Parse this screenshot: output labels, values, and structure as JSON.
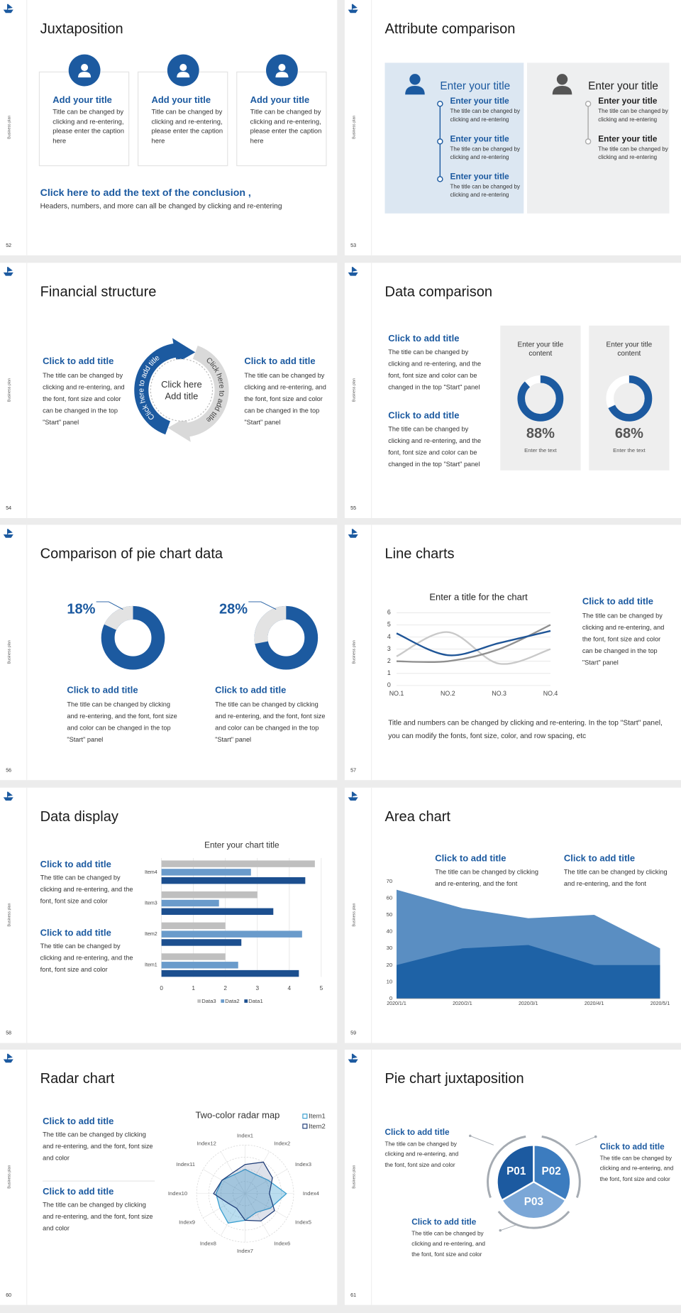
{
  "slides": [
    {
      "type": "cards",
      "number": 52,
      "side_label": "Business plan",
      "title": "Juxtaposition",
      "cards": [
        {
          "title": "Add your title",
          "text": "Title can be changed by clicking and re-entering, please enter the caption here"
        },
        {
          "title": "Add your title",
          "text": "Title can be changed by clicking and re-entering, please enter the caption here"
        },
        {
          "title": "Add your title",
          "text": "Title can be changed by clicking and re-entering, please enter the caption here"
        }
      ],
      "conclusion": "Click here to add the text of the conclusion ,",
      "conclusion_text": "Headers, numbers, and more can all be changed by clicking and re-entering"
    },
    {
      "type": "attributes",
      "number": 53,
      "side_label": "Business plan",
      "title": "Attribute comparison",
      "panels": [
        {
          "heading": "Enter your title",
          "items": [
            {
              "title": "Enter your title",
              "text": "The title can be changed by clicking and re-entering"
            },
            {
              "title": "Enter your title",
              "text": "The title can be changed by clicking and re-entering"
            },
            {
              "title": "Enter your title",
              "text": "The title can be changed by clicking and re-entering"
            }
          ]
        },
        {
          "heading": "Enter your title",
          "items": [
            {
              "title": "Enter your title",
              "text": "The title can be changed by clicking and re-entering"
            },
            {
              "title": "Enter your title",
              "text": "The title can be changed by clicking and re-entering"
            }
          ]
        }
      ]
    },
    {
      "type": "cycle",
      "number": 54,
      "side_label": "Business plan",
      "title": "Financial structure",
      "columns": [
        {
          "title": "Click to add title",
          "text": "The title can be changed by clicking and re-entering, and the font, font size and color can be changed in the top \"Start\" panel"
        },
        {
          "title": "Click to add title",
          "text": "The title can be changed by clicking and re-entering, and the font, font size and color can be changed in the top \"Start\" panel"
        }
      ],
      "center_lines": [
        "Click here",
        "Add title"
      ],
      "arc_labels": [
        "Click here to add title",
        "Click here to add title"
      ]
    },
    {
      "type": "gauges",
      "number": 55,
      "side_label": "Business plan",
      "title": "Data comparison",
      "items": [
        {
          "title": "Click to add title",
          "text": "The title can be changed by clicking and re-entering, and the font, font size and color can be changed in the top \"Start\" panel"
        },
        {
          "title": "Click to add title",
          "text": "The title can be changed by clicking and re-entering, and the font, font size and color can be changed in the top \"Start\" panel"
        }
      ],
      "cards": [
        {
          "title": "Enter your title content",
          "value": 88,
          "value_label": "88%",
          "caption": "Enter the text",
          "color": "#1c5aa0"
        },
        {
          "title": "Enter your title content",
          "value": 68,
          "value_label": "68%",
          "caption": "Enter the text",
          "color": "#1c5aa0"
        }
      ]
    },
    {
      "type": "donuts",
      "number": 56,
      "side_label": "Business plan",
      "title": "Comparison of pie chart data",
      "charts": [
        {
          "value": 18,
          "value_label": "18%",
          "color": "#e3e3e3",
          "title": "Click to add title",
          "text": "The title can be changed by clicking and re-entering, and the font, font size and color can be changed in the top \"Start\" panel"
        },
        {
          "value": 28,
          "value_label": "28%",
          "color": "#e3e3e3",
          "title": "Click to add title",
          "text": "The title can be changed by clicking and re-entering, and the font, font size and color can be changed in the top \"Start\" panel"
        }
      ]
    },
    {
      "type": "line",
      "number": 57,
      "side_label": "Business plan",
      "title": "Line charts",
      "chart": {
        "type": "line",
        "title": "Enter a title for the chart",
        "categories": [
          "NO.1",
          "NO.2",
          "NO.3",
          "NO.4"
        ],
        "series": [
          {
            "color": "#c9c9c9",
            "values": [
              2.4,
              4.4,
              1.8,
              3.0
            ]
          },
          {
            "color": "#8f8f8f",
            "values": [
              2.0,
              2.0,
              3.0,
              5.0
            ]
          },
          {
            "color": "#1f5597",
            "values": [
              4.3,
              2.5,
              3.5,
              4.5
            ]
          }
        ],
        "ylim": [
          0,
          6
        ],
        "yticks": [
          0,
          1,
          2,
          3,
          4,
          5,
          6
        ],
        "grid": true
      },
      "side": {
        "title": "Click to add title",
        "text": "The title can be changed by clicking and re-entering, and the font, font size and color can be changed in the top \"Start\" panel"
      },
      "note": "Title and numbers can be changed by clicking and re-entering. In the top \"Start\" panel, you can modify the fonts, font size, color, and row spacing, etc"
    },
    {
      "type": "bar",
      "number": 58,
      "side_label": "Business plan",
      "title": "Data display",
      "items": [
        {
          "title": "Click to add title",
          "text": "The title can be changed by clicking and re-entering, and the font, font size and color"
        },
        {
          "title": "Click to add title",
          "text": "The title can be changed by clicking and re-entering, and the font, font size and color"
        }
      ],
      "chart": {
        "type": "bar",
        "title": "Enter your chart title",
        "categories": [
          "Item1",
          "Item2",
          "Item3",
          "Item4"
        ],
        "series": [
          {
            "name": "Data3",
            "color": "#bfbfbf",
            "values": [
              2,
              2,
              3,
              4.8
            ]
          },
          {
            "name": "Data2",
            "color": "#6a9bcb",
            "values": [
              2.4,
              4.4,
              1.8,
              2.8
            ]
          },
          {
            "name": "Data1",
            "color": "#1c4f8f",
            "values": [
              4.3,
              2.5,
              3.5,
              4.5
            ]
          }
        ],
        "xlim": [
          0,
          5
        ],
        "xticks": [
          0,
          1,
          2,
          3,
          4,
          5
        ],
        "grid": true
      }
    },
    {
      "type": "area",
      "number": 59,
      "side_label": "Business plan",
      "title": "Area chart",
      "texts": [
        {
          "title": "Click to add title",
          "text": "The title can be changed by clicking and re-entering, and the font"
        },
        {
          "title": "Click to add title",
          "text": "The title can be changed by clicking and re-entering, and the font"
        }
      ],
      "chart": {
        "type": "area",
        "categories": [
          "2020/1/1",
          "2020/2/1",
          "2020/3/1",
          "2020/4/1",
          "2020/5/1"
        ],
        "series": [
          {
            "color": "#5a8ec2",
            "values": [
              65,
              54,
              48,
              50,
              30
            ]
          },
          {
            "color": "#1e62a6",
            "values": [
              20,
              30,
              32,
              20,
              20
            ]
          }
        ],
        "ylim": [
          0,
          70
        ],
        "yticks": [
          0,
          10,
          20,
          30,
          40,
          50,
          60,
          70
        ]
      }
    },
    {
      "type": "radar",
      "number": 60,
      "side_label": "Business plan",
      "title": "Radar chart",
      "items": [
        {
          "title": "Click to add title",
          "text": "The title can be changed by clicking and re-entering, and the font, font size and color"
        },
        {
          "title": "Click to add title",
          "text": "The title can be changed by clicking and re-entering, and the font, font size and color"
        }
      ],
      "chart": {
        "type": "radar",
        "title": "Two-color radar map",
        "indicators": [
          "Index1",
          "Index2",
          "Index3",
          "Index4",
          "Index5",
          "Index6",
          "Index7",
          "Index8",
          "Index9",
          "Index10",
          "Index11",
          "Index12"
        ],
        "series": [
          {
            "name": "Item1",
            "color": "#3a9fd0",
            "values": [
              50,
              45,
              55,
              85,
              60,
              45,
              55,
              70,
              60,
              60,
              55,
              45
            ]
          },
          {
            "name": "Item2",
            "color": "#1f3d78",
            "values": [
              60,
              75,
              65,
              50,
              70,
              65,
              55,
              35,
              40,
              65,
              55,
              50
            ]
          }
        ],
        "rlim": [
          0,
          100
        ]
      }
    },
    {
      "type": "pie",
      "number": 61,
      "side_label": "Business plan",
      "title": "Pie chart juxtaposition",
      "segments": [
        {
          "label": "P01",
          "color": "#1c5aa0"
        },
        {
          "label": "P02",
          "color": "#3c7cbf"
        },
        {
          "label": "P03",
          "color": "#7ba7d7"
        }
      ],
      "texts": [
        {
          "title": "Click to add title",
          "text": "The title can be changed by clicking and re-entering, and the font, font size and color"
        },
        {
          "title": "Click to add title",
          "text": "The title can be changed by clicking and re-entering, and the font, font size and color"
        },
        {
          "title": "Click to add title",
          "text": "The title can be changed by clicking and re-entering, and the font, font size and color"
        }
      ]
    }
  ]
}
